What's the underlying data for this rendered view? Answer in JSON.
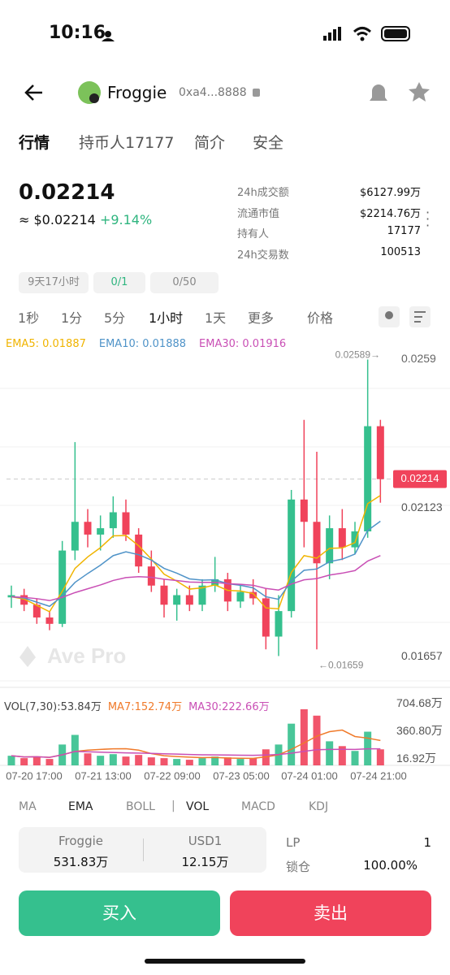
{
  "status": {
    "time": "10:16"
  },
  "header": {
    "name": "Froggie",
    "address": "0xa4...8888"
  },
  "tabs": [
    "行情",
    "持币人17177",
    "简介",
    "安全"
  ],
  "price": {
    "value": "0.02214",
    "usd": "≈ $0.02214",
    "change": "+9.14%"
  },
  "stats": [
    [
      "24h成交额",
      "$6127.99万"
    ],
    [
      "流通市值",
      "$2214.76万"
    ],
    [
      "持有人",
      "17177"
    ],
    [
      "24h交易数",
      "100513"
    ]
  ],
  "chips": [
    "9天17小时",
    "0/1",
    "0/50"
  ],
  "intervals": [
    "1秒",
    "1分",
    "5分",
    "1小时",
    "1天",
    "更多",
    "价格"
  ],
  "chart_data": {
    "type": "candlestick",
    "watermark": "Ave Pro",
    "ylim": [
      0.01576,
      0.02621
    ],
    "yticks": [
      0.0259,
      0.02123,
      0.01657
    ],
    "current_price": 0.02214,
    "max_label": {
      "value": 0.02589,
      "label": "0.02589→"
    },
    "min_label": {
      "value": 0.01659,
      "label": "←0.01659"
    },
    "up_color": "#35c08e",
    "down_color": "#f0435b",
    "candles": {
      "open": [
        0.01843,
        0.0185,
        0.0182,
        0.0178,
        0.0176,
        0.0199,
        0.0208,
        0.0204,
        0.0206,
        0.0211,
        0.0204,
        0.0194,
        0.0188,
        0.0182,
        0.0185,
        0.0182,
        0.0188,
        0.019,
        0.0183,
        0.0186,
        0.0184,
        0.0172,
        0.018,
        0.0215,
        0.0208,
        0.0195,
        0.0206,
        0.02,
        0.0205,
        0.0238
      ],
      "high": [
        0.0188,
        0.0187,
        0.0184,
        0.018,
        0.0202,
        0.0233,
        0.0212,
        0.021,
        0.0216,
        0.0215,
        0.0206,
        0.0199,
        0.019,
        0.0187,
        0.0188,
        0.019,
        0.0197,
        0.0192,
        0.0188,
        0.019,
        0.0187,
        0.0185,
        0.0218,
        0.024,
        0.023,
        0.021,
        0.0212,
        0.0208,
        0.02589,
        0.024
      ],
      "low": [
        0.0181,
        0.018,
        0.0176,
        0.0174,
        0.0175,
        0.0196,
        0.02,
        0.0199,
        0.0203,
        0.0202,
        0.0192,
        0.0186,
        0.0178,
        0.0177,
        0.018,
        0.018,
        0.0186,
        0.018,
        0.0181,
        0.0182,
        0.0168,
        0.01659,
        0.0178,
        0.02,
        0.0168,
        0.019,
        0.0196,
        0.0198,
        0.0203,
        0.0214
      ],
      "close": [
        0.0185,
        0.0182,
        0.0178,
        0.0176,
        0.0199,
        0.0208,
        0.0204,
        0.0206,
        0.0211,
        0.0204,
        0.0194,
        0.0188,
        0.0182,
        0.0185,
        0.0182,
        0.0188,
        0.019,
        0.0183,
        0.0186,
        0.0184,
        0.0172,
        0.018,
        0.0215,
        0.0208,
        0.0195,
        0.0206,
        0.02,
        0.0205,
        0.0238,
        0.02214
      ]
    },
    "ema_lines": [
      {
        "name": "EMA5: 0.01887",
        "color": "#f0b400",
        "values": [
          0.01845,
          0.01838,
          0.01818,
          0.01798,
          0.01862,
          0.01934,
          0.0197,
          0.01999,
          0.02036,
          0.02037,
          0.02005,
          0.01963,
          0.01916,
          0.01894,
          0.01869,
          0.01873,
          0.01882,
          0.01865,
          0.01863,
          0.01855,
          0.0181,
          0.01807,
          0.01921,
          0.01974,
          0.01966,
          0.01997,
          0.01998,
          0.02015,
          0.02137,
          0.02163
        ]
      },
      {
        "name": "EMA10: 0.01888",
        "color": "#4f93c8",
        "values": [
          0.01845,
          0.01841,
          0.01828,
          0.01815,
          0.01847,
          0.0189,
          0.01918,
          0.01944,
          0.01974,
          0.01986,
          0.01977,
          0.0196,
          0.01934,
          0.01919,
          0.01901,
          0.01897,
          0.01898,
          0.01886,
          0.01881,
          0.01873,
          0.01845,
          0.01837,
          0.01894,
          0.01928,
          0.01932,
          0.01955,
          0.01963,
          0.01979,
          0.02053,
          0.02082
        ]
      },
      {
        "name": "EMA30: 0.01916",
        "color": "#c94fb5",
        "values": [
          0.01845,
          0.01843,
          0.01839,
          0.01833,
          0.01843,
          0.01858,
          0.0187,
          0.01882,
          0.01896,
          0.01905,
          0.01908,
          0.01906,
          0.019,
          0.01896,
          0.01891,
          0.0189,
          0.0189,
          0.01886,
          0.01884,
          0.01881,
          0.01871,
          0.01866,
          0.01885,
          0.01898,
          0.01902,
          0.01913,
          0.01919,
          0.01927,
          0.01957,
          0.01974
        ]
      }
    ],
    "volume": {
      "title": "VOL(7,30):53.84万",
      "ylim": [
        0,
        780
      ],
      "yticks": [
        {
          "value": 704.68,
          "label": "704.68万"
        },
        {
          "value": 360.8,
          "label": "360.80万"
        },
        {
          "value": 16.92,
          "label": "16.92万"
        }
      ],
      "values": [
        120,
        90,
        110,
        80,
        260,
        380,
        150,
        120,
        140,
        110,
        130,
        100,
        90,
        80,
        70,
        90,
        110,
        100,
        80,
        90,
        200,
        260,
        520,
        700,
        620,
        300,
        240,
        180,
        420,
        200
      ],
      "lines": [
        {
          "name": "MA7:152.74万",
          "color": "#f07a2a",
          "values": [
            120,
            105,
            107,
            100,
            132,
            173,
            190,
            199,
            207,
            208,
            190,
            147,
            120,
            110,
            103,
            96,
            99,
            91,
            89,
            87,
            106,
            132,
            200,
            280,
            364,
            420,
            440,
            360,
            340,
            310
          ]
        },
        {
          "name": "MA30:222.66万",
          "color": "#c94fb5",
          "values": [
            120,
            105,
            107,
            100,
            132,
            173,
            170,
            164,
            161,
            156,
            153,
            149,
            144,
            140,
            135,
            132,
            131,
            129,
            127,
            125,
            129,
            135,
            152,
            175,
            195,
            199,
            200,
            199,
            206,
            206
          ]
        }
      ]
    },
    "x_labels": [
      "07-20 17:00",
      "07-21 13:00",
      "07-22 09:00",
      "07-23 05:00",
      "07-24 01:00",
      "07-24 21:00"
    ]
  },
  "indicators": [
    "MA",
    "EMA",
    "BOLL",
    "VOL",
    "MACD",
    "KDJ"
  ],
  "lp": {
    "token1": "Froggie",
    "amount1": "531.83万",
    "token2": "USD1",
    "amount2": "12.15万",
    "lp_label": "LP",
    "lp_value": "1",
    "lock_label": "锁仓",
    "lock_value": "100.00%"
  },
  "buttons": {
    "buy": "买入",
    "sell": "卖出"
  }
}
